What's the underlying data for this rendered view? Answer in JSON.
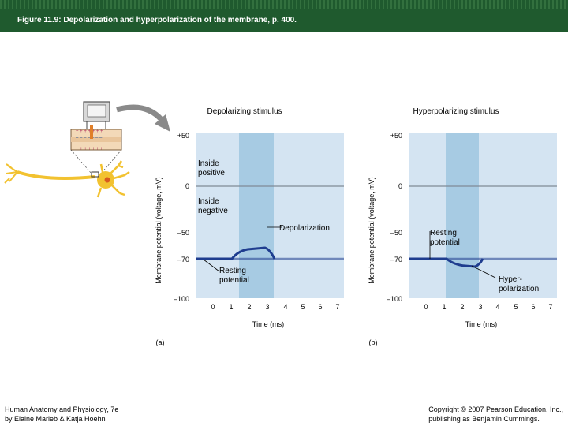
{
  "header": {
    "title": "Figure 11.9: Depolarization and hyperpolarization of the membrane, p. 400."
  },
  "panel_a": {
    "title": "Depolarizing stimulus",
    "y_axis_label": "Membrane potential (voltage, mV)",
    "y_ticks": [
      "+50",
      "0",
      "–50",
      "–70",
      "–100"
    ],
    "x_ticks": [
      "0",
      "1",
      "2",
      "3",
      "4",
      "5",
      "6",
      "7"
    ],
    "x_axis_label": "Time (ms)",
    "panel_label": "(a)",
    "label_inside_positive": [
      "Inside",
      "positive"
    ],
    "label_inside_negative": [
      "Inside",
      "negative"
    ],
    "label_depolarization": "Depolarization",
    "label_resting": [
      "Resting",
      "potential"
    ]
  },
  "panel_b": {
    "title": "Hyperpolarizing stimulus",
    "y_axis_label": "Membrane potential (voltage, mV)",
    "y_ticks": [
      "+50",
      "0",
      "–50",
      "–70",
      "–100"
    ],
    "x_ticks": [
      "0",
      "1",
      "2",
      "3",
      "4",
      "5",
      "6",
      "7"
    ],
    "x_axis_label": "Time (ms)",
    "panel_label": "(b)",
    "label_resting": [
      "Resting",
      "potential"
    ],
    "label_hyper": [
      "Hyper-",
      "polarization"
    ]
  },
  "footer": {
    "left_line1": "Human Anatomy and Physiology, 7e",
    "left_line2": "by Elaine Marieb & Katja Hoehn",
    "right_line1": "Copyright © 2007 Pearson Education, Inc.,",
    "right_line2": "publishing as Benjamin Cummings."
  },
  "colors": {
    "header": "#1f5a2e",
    "plot_bg": "#d4e4f2",
    "stim_band": "#a7cbe3",
    "trace": "#1f3d8f"
  }
}
